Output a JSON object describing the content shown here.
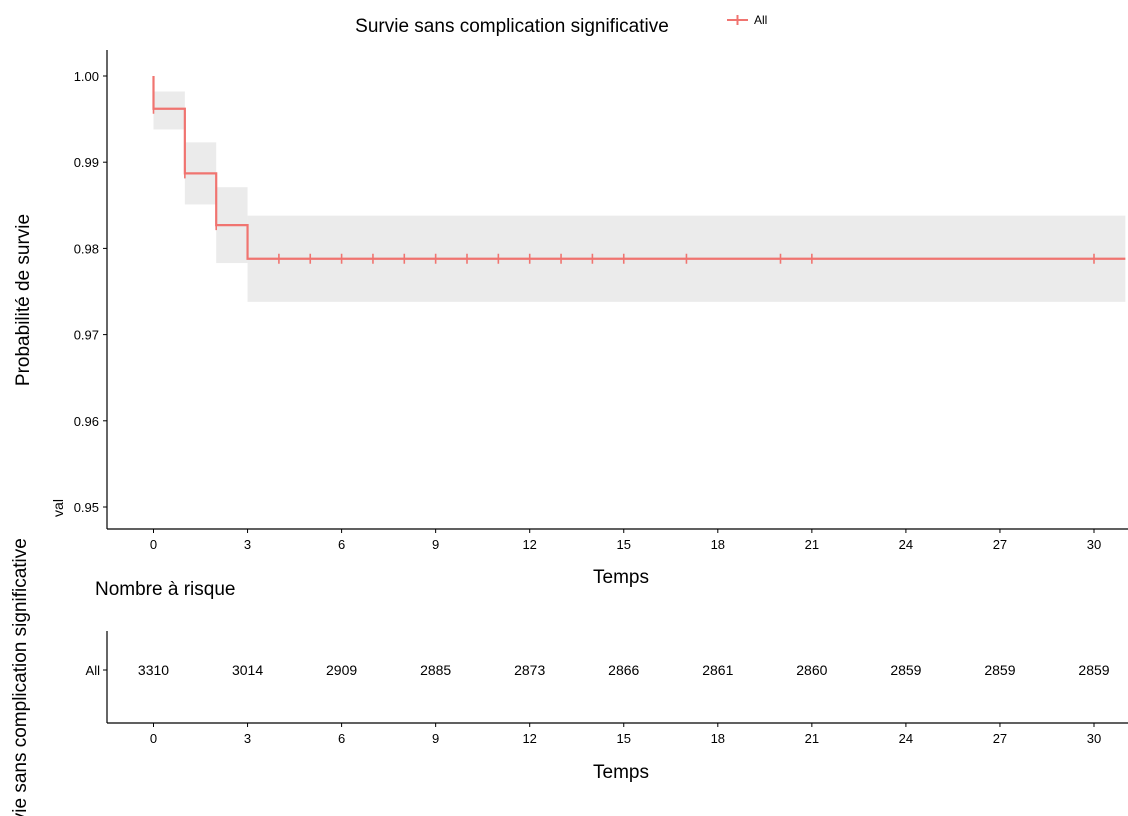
{
  "chart_data": [
    {
      "type": "line",
      "title": "Survie sans complication significative",
      "xlabel": "Temps",
      "ylabel": "Probabilité de survie",
      "y_small_label": "val",
      "xlim": [
        -1.5,
        31
      ],
      "ylim": [
        0.9495,
        1.001
      ],
      "x_ticks": [
        0,
        3,
        6,
        9,
        12,
        15,
        18,
        21,
        24,
        27,
        30
      ],
      "y_ticks": [
        0.95,
        0.96,
        0.97,
        0.98,
        0.99,
        1.0
      ],
      "y_tick_labels": [
        "0.95",
        "0.96",
        "0.97",
        "0.98",
        "0.99",
        "1.00"
      ],
      "grid": false,
      "legend": {
        "placement": "top-right",
        "entries": [
          "All"
        ]
      },
      "series": [
        {
          "name": "All",
          "color": "#f07470",
          "step_x": [
            0,
            0,
            1,
            2,
            3,
            31
          ],
          "step_y": [
            1.0,
            0.9962,
            0.9887,
            0.9827,
            0.9788,
            0.9788
          ],
          "ci": [
            {
              "x0": 0,
              "x1": 1,
              "lower": 0.9938,
              "upper": 0.9982
            },
            {
              "x0": 1,
              "x1": 2,
              "lower": 0.9851,
              "upper": 0.9923
            },
            {
              "x0": 2,
              "x1": 3,
              "lower": 0.9783,
              "upper": 0.9871
            },
            {
              "x0": 3,
              "x1": 31,
              "lower": 0.9738,
              "upper": 0.9838
            }
          ],
          "censor_x": [
            0,
            1,
            2,
            4,
            5,
            6,
            7,
            8,
            9,
            10,
            11,
            12,
            13,
            14,
            15,
            17,
            20,
            21,
            30
          ],
          "censor_y": [
            0.9962,
            0.9887,
            0.9827,
            0.9788,
            0.9788,
            0.9788,
            0.9788,
            0.9788,
            0.9788,
            0.9788,
            0.9788,
            0.9788,
            0.9788,
            0.9788,
            0.9788,
            0.9788,
            0.9788,
            0.9788,
            0.9788
          ]
        }
      ]
    },
    {
      "type": "table",
      "title": "Nombre à risque",
      "xlabel": "Temps",
      "ylabel": "Survie sans complication significative",
      "row_label": "All",
      "row_label_color": "#f07470",
      "x_ticks": [
        0,
        3,
        6,
        9,
        12,
        15,
        18,
        21,
        24,
        27,
        30
      ],
      "values": [
        3310,
        3014,
        2909,
        2885,
        2873,
        2866,
        2861,
        2860,
        2859,
        2859,
        2859
      ]
    }
  ]
}
